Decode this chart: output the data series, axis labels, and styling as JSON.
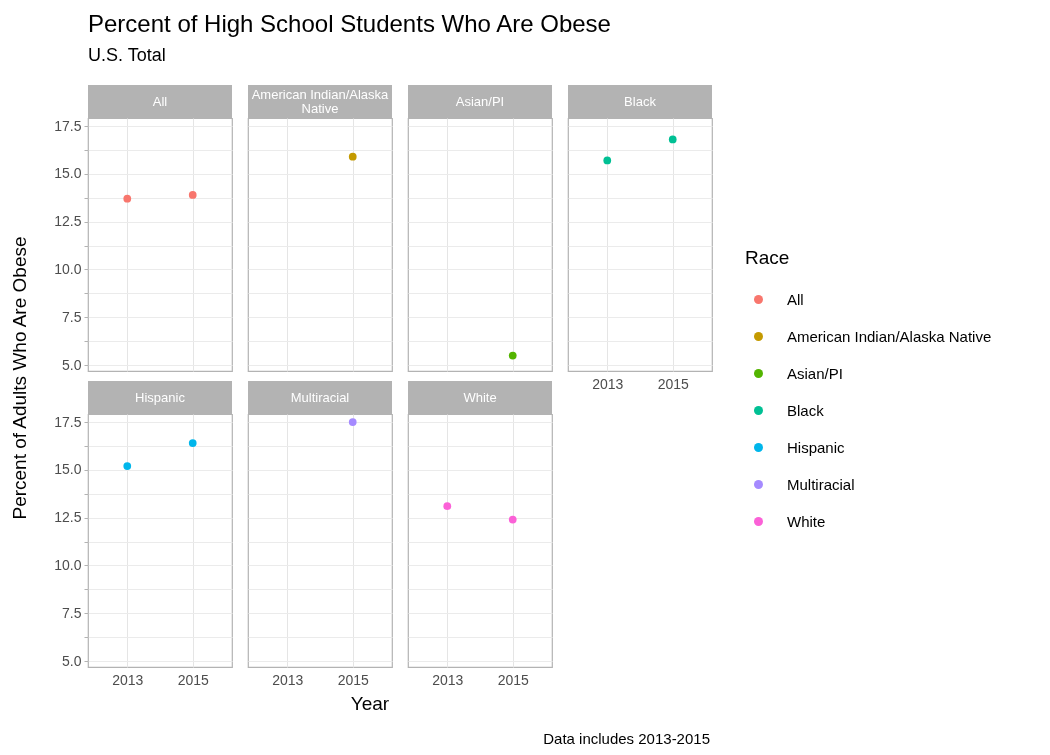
{
  "chart_data": [
    {
      "type": "scatter",
      "title": "Percent of High School Students Who Are Obese",
      "subtitle": "U.S. Total",
      "ylabel": "Percent of Adults Who Are Obese",
      "legend_title": "Race",
      "legend": "right",
      "annotations": [
        "Data includes 2013-2015"
      ],
      "categories": [
        "2013",
        "2015"
      ],
      "series": [
        {
          "name": "All",
          "color": "#f8766d",
          "values": [
            13.7,
            13.9
          ]
        }
      ],
      "ylim": [
        4.69,
        17.92
      ],
      "yticks": [
        {
          "value": 5,
          "label": "5.0"
        },
        {
          "value": 6.25,
          "label": null
        },
        7.5,
        {
          "value": 8.75,
          "label": null
        },
        {
          "value": 10,
          "label": "10.0"
        },
        {
          "value": 11.25,
          "label": null
        },
        12.5,
        {
          "value": 13.75,
          "label": null
        },
        {
          "value": 15,
          "label": "15.0"
        },
        {
          "value": 16.25,
          "label": null
        },
        17.5
      ],
      "grid": true,
      "marker": "circle",
      "tick_labels": "y"
    },
    {
      "type": "scatter",
      "categories": [
        "2013",
        "2015"
      ],
      "series": [
        {
          "name": "American Indian/Alaska Native",
          "color": "#c49a00",
          "values": [
            null,
            15.9
          ]
        }
      ],
      "ylim": [
        4.69,
        17.92
      ],
      "yticks": [
        5,
        6.25,
        7.5,
        8.75,
        10,
        11.25,
        12.5,
        13.75,
        15,
        16.25,
        17.5
      ],
      "grid": true,
      "marker": "circle",
      "tick_labels": false
    },
    {
      "type": "scatter",
      "categories": [
        "2013",
        "2015"
      ],
      "series": [
        {
          "name": "Asian/PI",
          "color": "#53b400",
          "values": [
            null,
            5.5
          ]
        }
      ],
      "ylim": [
        4.69,
        17.92
      ],
      "yticks": [
        5,
        6.25,
        7.5,
        8.75,
        10,
        11.25,
        12.5,
        13.75,
        15,
        16.25,
        17.5
      ],
      "grid": true,
      "marker": "circle",
      "tick_labels": false
    },
    {
      "type": "scatter",
      "categories": [
        "2013",
        "2015"
      ],
      "series": [
        {
          "name": "Black",
          "color": "#00c094",
          "values": [
            15.7,
            16.8
          ]
        }
      ],
      "ylim": [
        4.69,
        17.92
      ],
      "yticks": [
        5,
        6.25,
        7.5,
        8.75,
        10,
        11.25,
        12.5,
        13.75,
        15,
        16.25,
        17.5
      ],
      "grid": true,
      "marker": "circle",
      "tick_labels": "x"
    },
    {
      "type": "scatter",
      "categories": [
        "2013",
        "2015"
      ],
      "series": [
        {
          "name": "Hispanic",
          "color": "#00b6eb",
          "values": [
            15.2,
            16.4
          ]
        }
      ],
      "ylim": [
        4.69,
        17.92
      ],
      "yticks": [
        {
          "value": 5,
          "label": "5.0"
        },
        {
          "value": 6.25,
          "label": null
        },
        7.5,
        {
          "value": 8.75,
          "label": null
        },
        {
          "value": 10,
          "label": "10.0"
        },
        {
          "value": 11.25,
          "label": null
        },
        12.5,
        {
          "value": 13.75,
          "label": null
        },
        {
          "value": 15,
          "label": "15.0"
        },
        {
          "value": 16.25,
          "label": null
        },
        17.5
      ],
      "grid": true,
      "marker": "circle"
    },
    {
      "type": "scatter",
      "xlabel": "Year",
      "categories": [
        "2013",
        "2015"
      ],
      "series": [
        {
          "name": "Multiracial",
          "color": "#a58aff",
          "values": [
            null,
            17.5
          ]
        }
      ],
      "ylim": [
        4.69,
        17.92
      ],
      "yticks": [
        5,
        6.25,
        7.5,
        8.75,
        10,
        11.25,
        12.5,
        13.75,
        15,
        16.25,
        17.5
      ],
      "grid": true,
      "marker": "circle",
      "tick_labels": "x"
    },
    {
      "type": "scatter",
      "categories": [
        "2013",
        "2015"
      ],
      "series": [
        {
          "name": "White",
          "color": "#fb61d7",
          "values": [
            13.1,
            12.4
          ]
        }
      ],
      "ylim": [
        4.69,
        17.92
      ],
      "yticks": [
        5,
        6.25,
        7.5,
        8.75,
        10,
        11.25,
        12.5,
        13.75,
        15,
        16.25,
        17.5
      ],
      "grid": true,
      "marker": "circle",
      "tick_labels": "x"
    }
  ]
}
